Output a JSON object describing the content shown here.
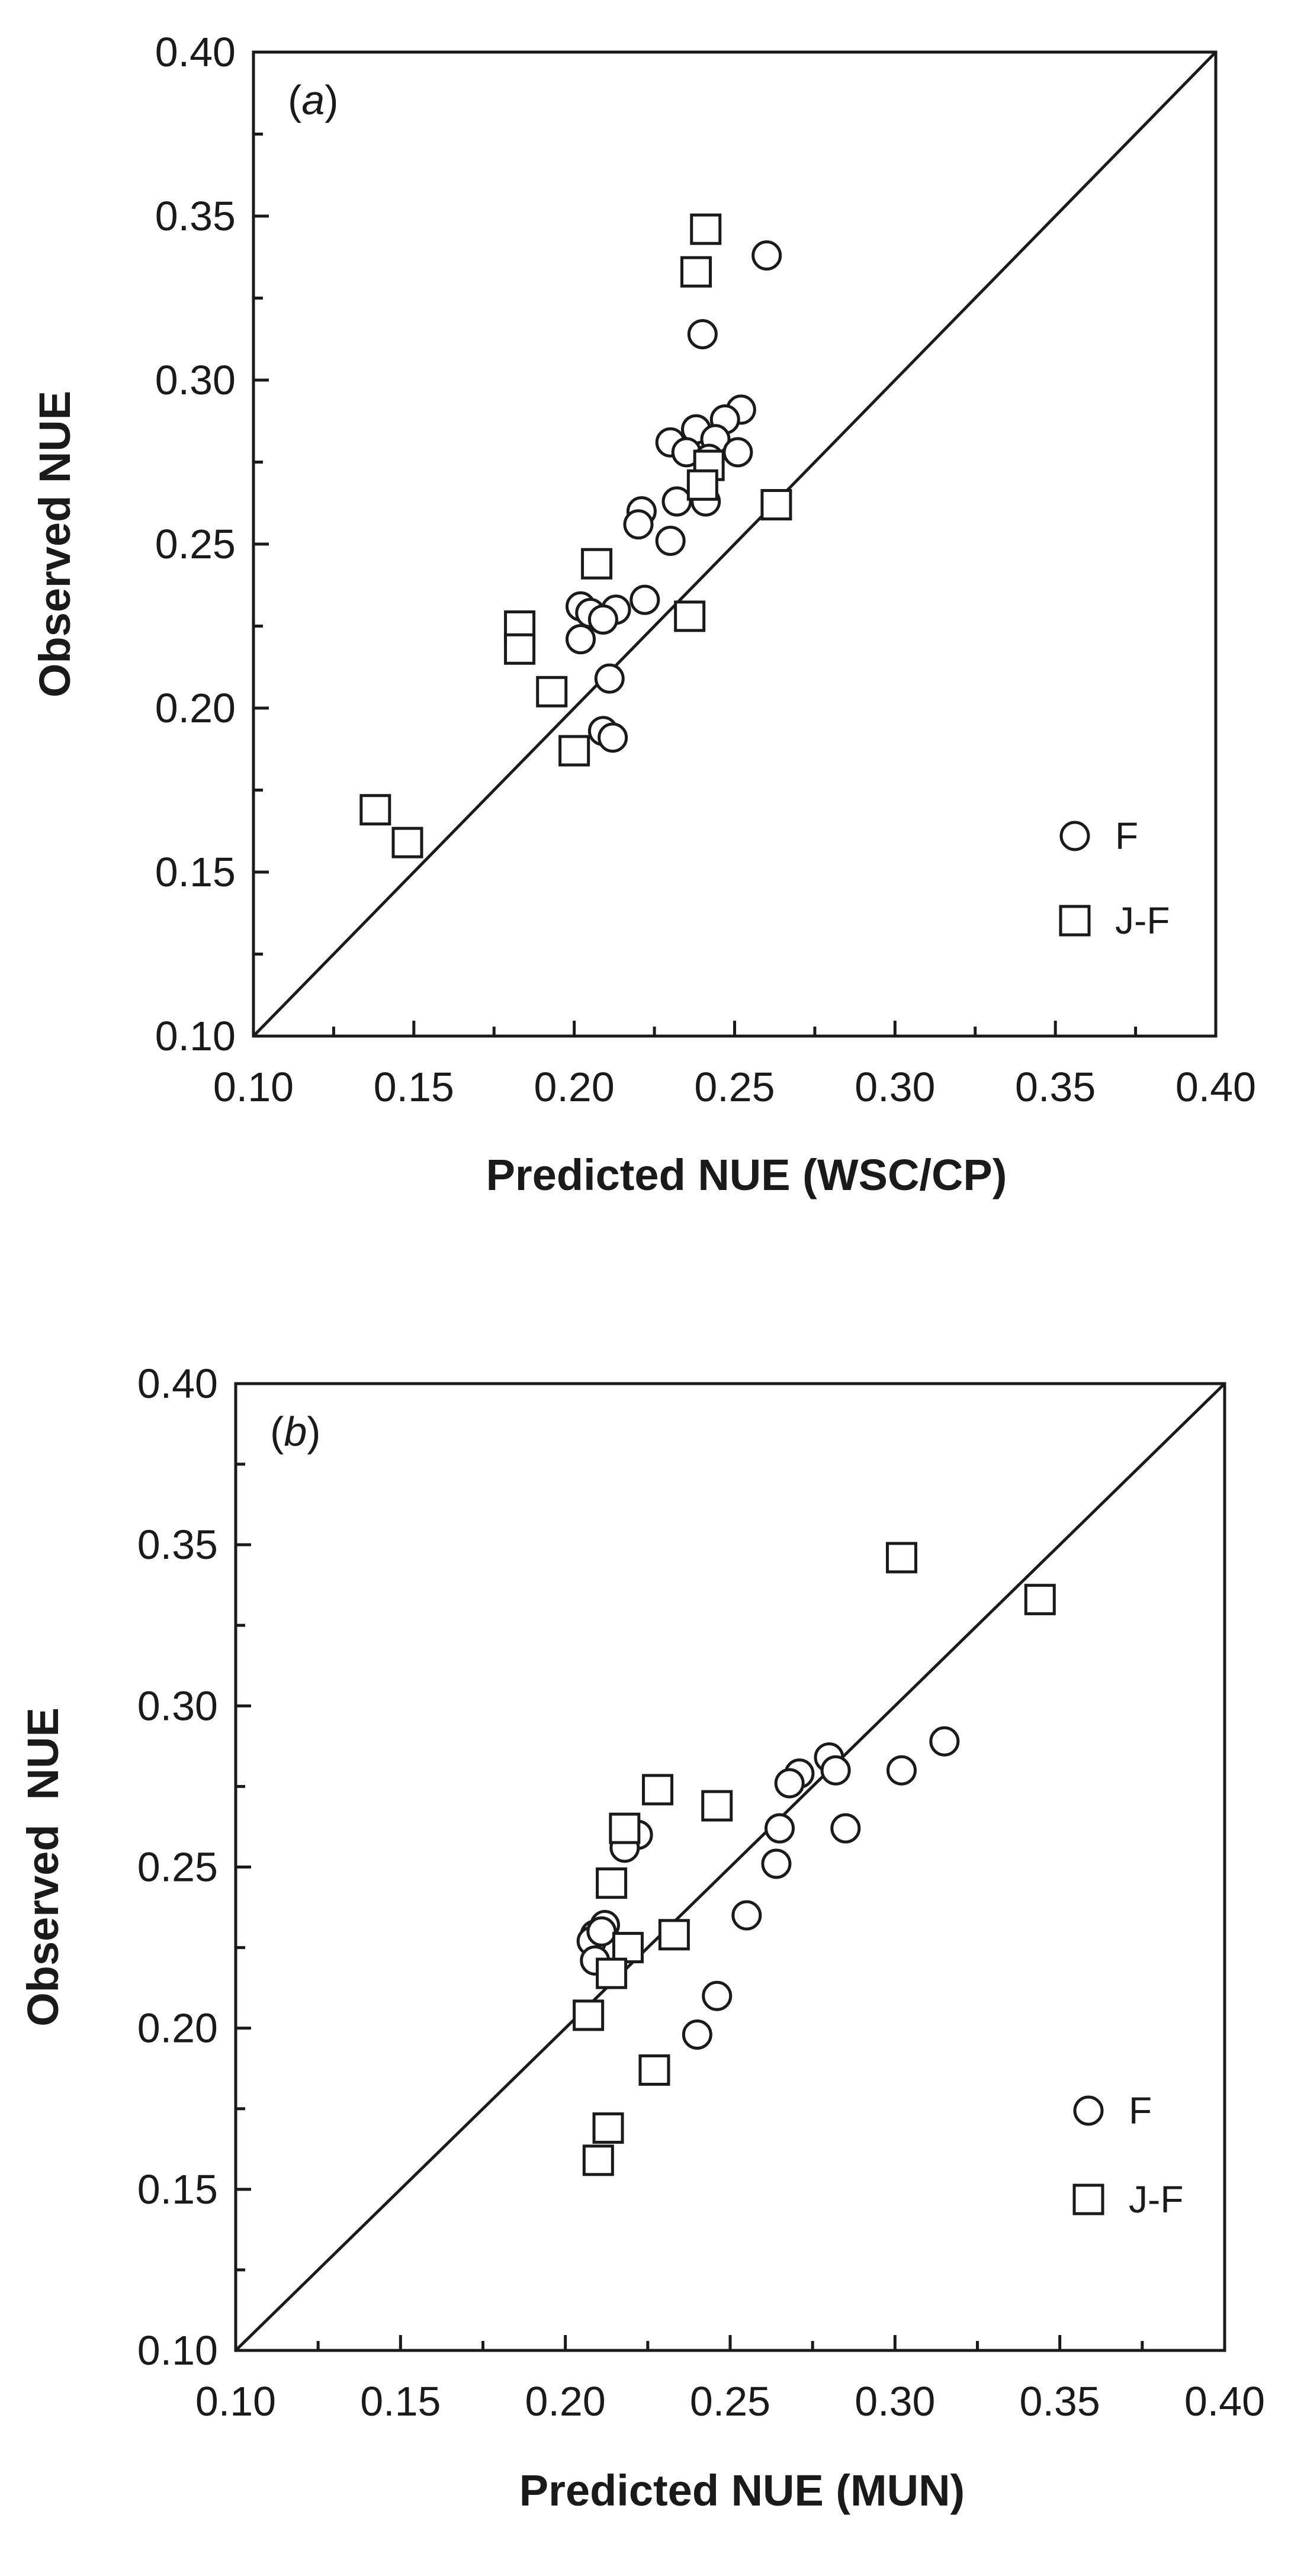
{
  "chart_data": [
    {
      "type": "scatter",
      "panel_label": "a",
      "xlabel": "Predicted NUE (WSC/CP)",
      "ylabel": "Observed NUE",
      "xlim": [
        0.1,
        0.4
      ],
      "ylim": [
        0.1,
        0.4
      ],
      "xticks": [
        "0.10",
        "0.15",
        "0.20",
        "0.25",
        "0.30",
        "0.35",
        "0.40"
      ],
      "yticks": [
        "0.10",
        "0.15",
        "0.20",
        "0.25",
        "0.30",
        "0.35",
        "0.40"
      ],
      "reference_line": "1:1",
      "legend_position": "bottom-right",
      "series": [
        {
          "name": "F",
          "marker": "circle",
          "points": [
            [
              0.26,
              0.338
            ],
            [
              0.24,
              0.314
            ],
            [
              0.252,
              0.291
            ],
            [
              0.247,
              0.288
            ],
            [
              0.238,
              0.285
            ],
            [
              0.23,
              0.281
            ],
            [
              0.244,
              0.282
            ],
            [
              0.235,
              0.278
            ],
            [
              0.251,
              0.278
            ],
            [
              0.242,
              0.276
            ],
            [
              0.232,
              0.263
            ],
            [
              0.241,
              0.263
            ],
            [
              0.221,
              0.26
            ],
            [
              0.22,
              0.256
            ],
            [
              0.23,
              0.251
            ],
            [
              0.222,
              0.233
            ],
            [
              0.202,
              0.231
            ],
            [
              0.213,
              0.23
            ],
            [
              0.205,
              0.229
            ],
            [
              0.209,
              0.227
            ],
            [
              0.202,
              0.221
            ],
            [
              0.211,
              0.209
            ],
            [
              0.209,
              0.193
            ],
            [
              0.212,
              0.191
            ]
          ]
        },
        {
          "name": "J-F",
          "marker": "square",
          "points": [
            [
              0.241,
              0.346
            ],
            [
              0.238,
              0.333
            ],
            [
              0.242,
              0.274
            ],
            [
              0.24,
              0.268
            ],
            [
              0.263,
              0.262
            ],
            [
              0.207,
              0.244
            ],
            [
              0.236,
              0.228
            ],
            [
              0.183,
              0.225
            ],
            [
              0.183,
              0.218
            ],
            [
              0.193,
              0.205
            ],
            [
              0.2,
              0.187
            ],
            [
              0.138,
              0.169
            ],
            [
              0.148,
              0.159
            ]
          ]
        }
      ]
    },
    {
      "type": "scatter",
      "panel_label": "b",
      "xlabel": "Predicted NUE (MUN)",
      "ylabel": "Observed  NUE",
      "xlim": [
        0.1,
        0.4
      ],
      "ylim": [
        0.1,
        0.4
      ],
      "xticks": [
        "0.10",
        "0.15",
        "0.20",
        "0.25",
        "0.30",
        "0.35",
        "0.40"
      ],
      "yticks": [
        "0.10",
        "0.15",
        "0.20",
        "0.25",
        "0.30",
        "0.35",
        "0.40"
      ],
      "reference_line": "1:1",
      "legend_position": "bottom-right",
      "series": [
        {
          "name": "F",
          "marker": "circle",
          "points": [
            [
              0.315,
              0.289
            ],
            [
              0.302,
              0.28
            ],
            [
              0.28,
              0.284
            ],
            [
              0.282,
              0.28
            ],
            [
              0.271,
              0.279
            ],
            [
              0.268,
              0.276
            ],
            [
              0.265,
              0.262
            ],
            [
              0.285,
              0.262
            ],
            [
              0.264,
              0.251
            ],
            [
              0.255,
              0.235
            ],
            [
              0.246,
              0.21
            ],
            [
              0.24,
              0.198
            ],
            [
              0.222,
              0.26
            ],
            [
              0.218,
              0.256
            ],
            [
              0.212,
              0.232
            ],
            [
              0.209,
              0.229
            ],
            [
              0.208,
              0.227
            ],
            [
              0.211,
              0.23
            ],
            [
              0.209,
              0.221
            ]
          ]
        },
        {
          "name": "J-F",
          "marker": "square",
          "points": [
            [
              0.302,
              0.346
            ],
            [
              0.344,
              0.333
            ],
            [
              0.228,
              0.274
            ],
            [
              0.246,
              0.269
            ],
            [
              0.218,
              0.262
            ],
            [
              0.214,
              0.245
            ],
            [
              0.233,
              0.229
            ],
            [
              0.219,
              0.225
            ],
            [
              0.214,
              0.217
            ],
            [
              0.207,
              0.204
            ],
            [
              0.227,
              0.187
            ],
            [
              0.213,
              0.169
            ],
            [
              0.21,
              0.159
            ]
          ]
        }
      ]
    }
  ]
}
